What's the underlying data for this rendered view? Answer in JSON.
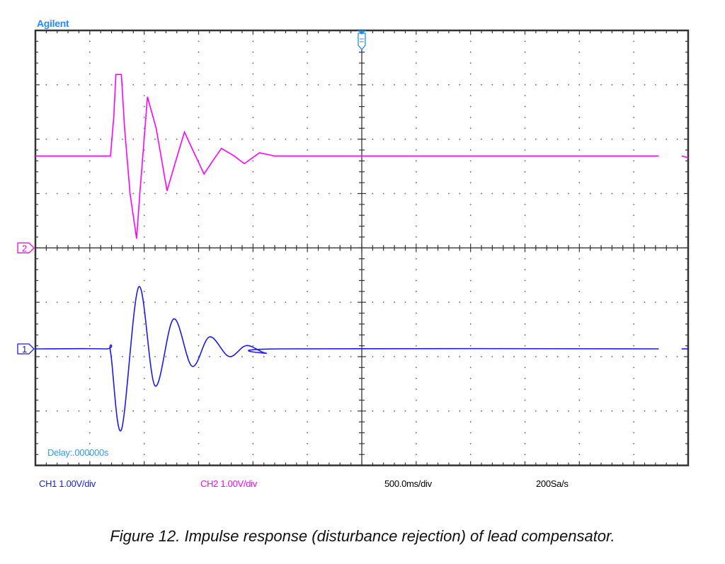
{
  "brand": "Agilent",
  "delay_label": "Delay:.000000s",
  "footer": {
    "ch1": "CH1 1.00V/div",
    "ch2": "CH2 1.00V/div",
    "timebase": "500.0ms/div",
    "sample_rate": "200Sa/s"
  },
  "caption": "Figure 12. Impulse response (disturbance rejection) of lead compensator.",
  "chart_data": {
    "type": "line",
    "title": "",
    "xlabel": "",
    "ylabel": "",
    "x_units": "s",
    "y_units": "V",
    "xlim": [
      -3,
      3
    ],
    "grid": true,
    "divisions": {
      "horizontal": 12,
      "vertical": 8
    },
    "channel_markers": [
      "2",
      "1"
    ],
    "colors": {
      "ch1": "#1a1aee",
      "ch2": "#ff00ff",
      "brand": "#1e8cff",
      "grid": "#333333"
    },
    "series": [
      {
        "name": "CH1",
        "color": "#1a1aee",
        "t": [
          -3,
          -2.36,
          -2.31,
          -2.21,
          -2.05,
          -1.9,
          -1.73,
          -1.56,
          -1.4,
          -1.22,
          -1.06,
          -0.88,
          -0.75,
          2.73
        ],
        "v": [
          0,
          0,
          -0.05,
          -1.49,
          1.14,
          -0.68,
          0.55,
          -0.32,
          0.22,
          -0.14,
          0.06,
          -0.08,
          0,
          0
        ],
        "tail": {
          "t": [
            2.94,
            3.0
          ],
          "v": [
            0,
            0
          ]
        }
      },
      {
        "name": "CH2",
        "color": "#ff00ff",
        "t": [
          -3,
          -2.31,
          -2.28,
          -2.26,
          -2.21,
          -2.18,
          -2.13,
          -2.07,
          -2.04,
          -1.97,
          -1.89,
          -1.79,
          -1.71,
          -1.63,
          -1.53,
          -1.45,
          -1.37,
          -1.29,
          -1.18,
          -1.08,
          -0.94,
          -0.8,
          2.73
        ],
        "v": [
          1.69,
          1.69,
          2.4,
          3.19,
          3.19,
          2.2,
          1.0,
          0.17,
          1.0,
          2.78,
          2.2,
          1.05,
          1.6,
          2.13,
          1.7,
          1.36,
          1.6,
          1.83,
          1.7,
          1.55,
          1.75,
          1.69,
          1.69
        ],
        "tail": {
          "t": [
            2.94,
            3.0
          ],
          "v": [
            1.69,
            1.66
          ]
        }
      }
    ]
  }
}
